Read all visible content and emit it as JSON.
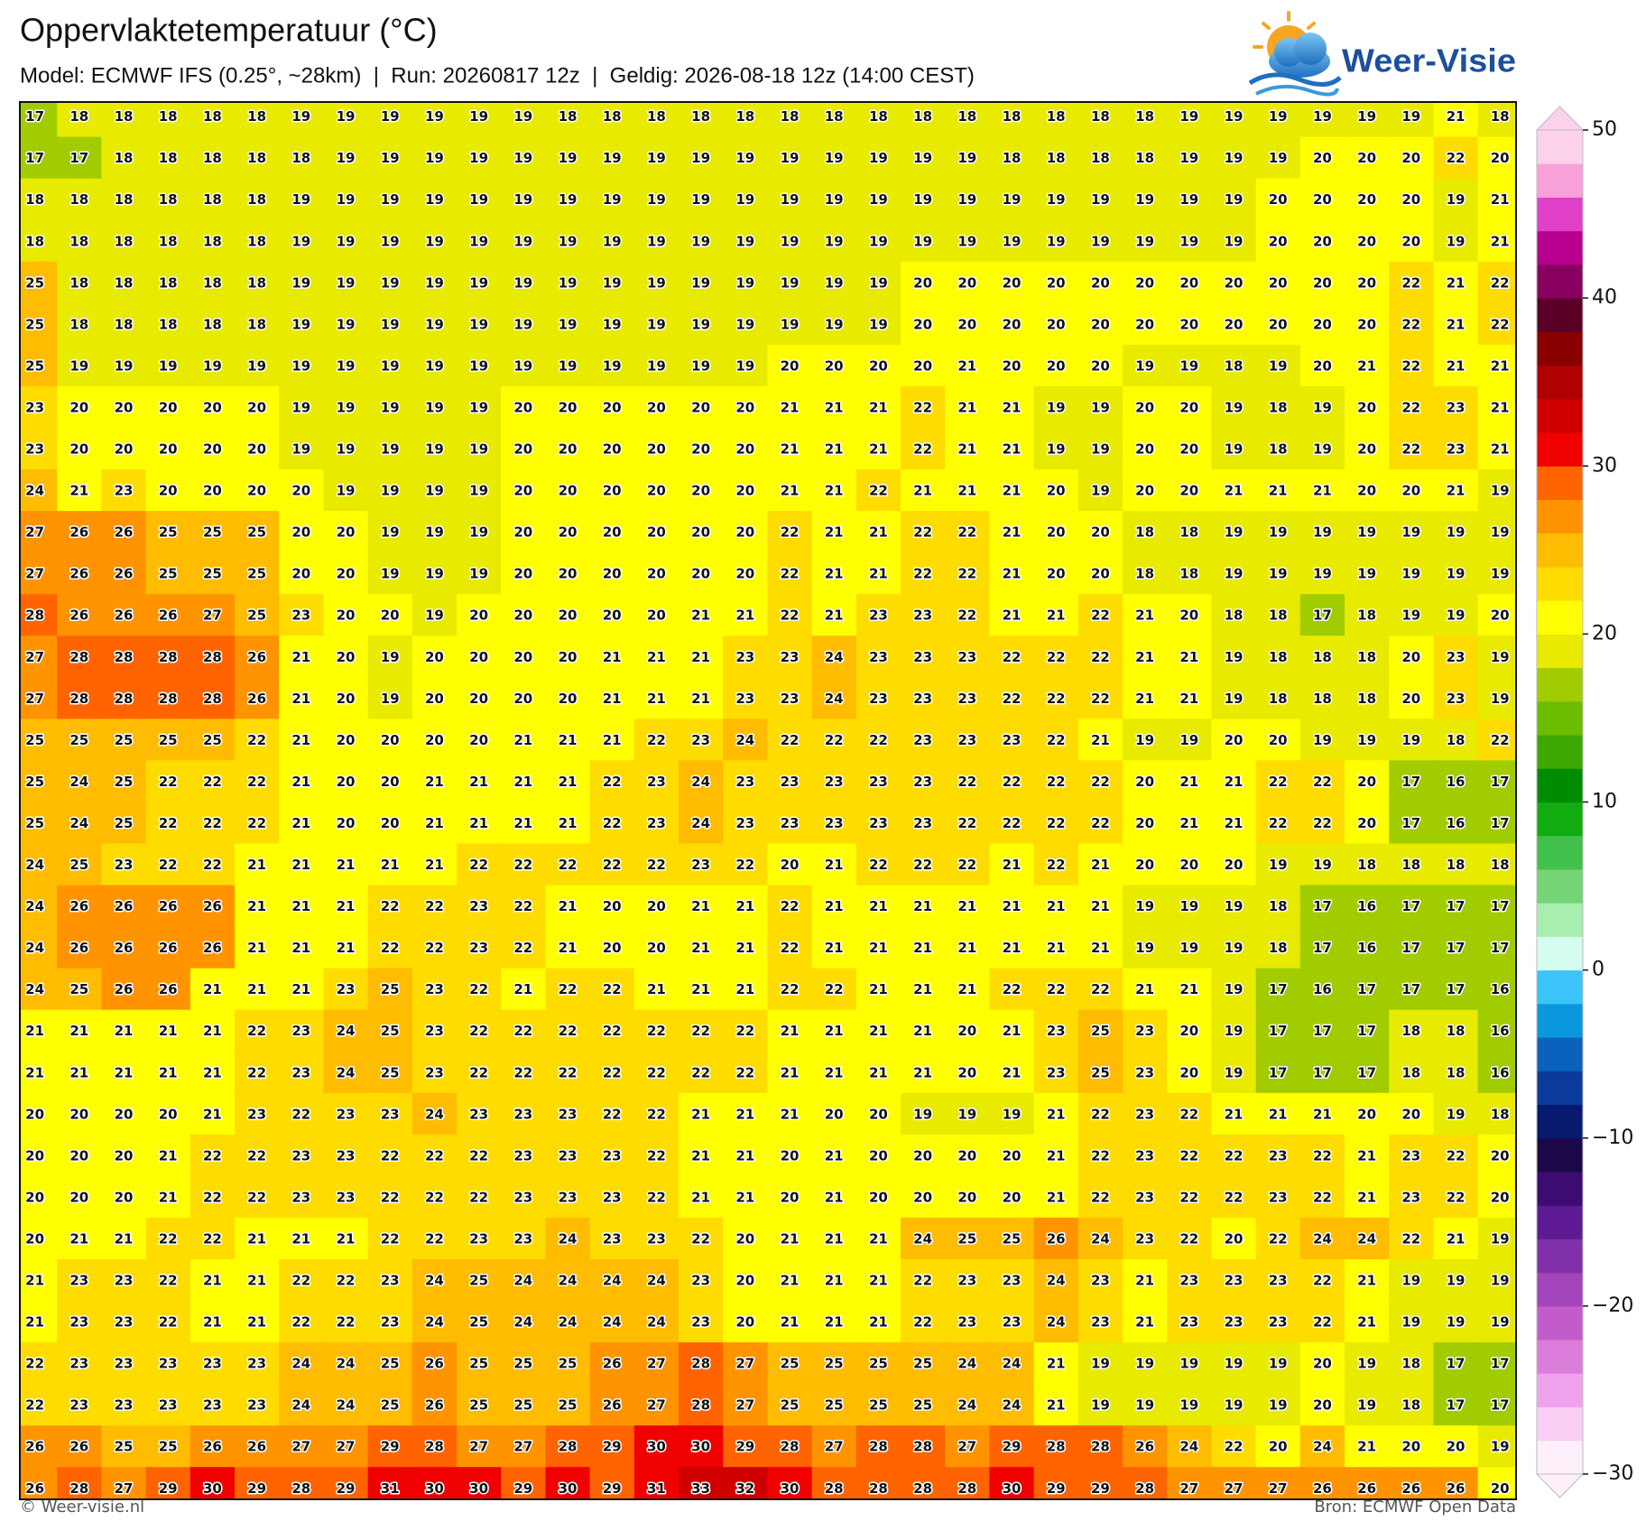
{
  "header": {
    "title": "Oppervlaktetemperatuur (°C)",
    "subtitle": "Model: ECMWF IFS (0.25°, ~28km)  |  Run: 20260817 12z  |  Geldig: 2026-08-18 12z (14:00 CEST)",
    "logo": "Weer-Visie"
  },
  "map": {
    "rows": [
      [
        17,
        18,
        18,
        18,
        18,
        18,
        19,
        19,
        19,
        19,
        19,
        19,
        18,
        18,
        18,
        18,
        18,
        18,
        18,
        18,
        18,
        18,
        18,
        18,
        18,
        18,
        19,
        19,
        19,
        19,
        19,
        19,
        21,
        18
      ],
      [
        17,
        17,
        18,
        18,
        18,
        18,
        18,
        19,
        19,
        19,
        19,
        19,
        19,
        19,
        19,
        19,
        19,
        19,
        19,
        19,
        19,
        19,
        18,
        18,
        18,
        18,
        19,
        19,
        19,
        20,
        20,
        20,
        22,
        20
      ],
      [
        18,
        18,
        18,
        18,
        18,
        18,
        19,
        19,
        19,
        19,
        19,
        19,
        19,
        19,
        19,
        19,
        19,
        19,
        19,
        19,
        19,
        19,
        19,
        19,
        19,
        19,
        19,
        19,
        20,
        20,
        20,
        20,
        19,
        21
      ],
      [
        18,
        18,
        18,
        18,
        18,
        18,
        19,
        19,
        19,
        19,
        19,
        19,
        19,
        19,
        19,
        19,
        19,
        19,
        19,
        19,
        19,
        19,
        19,
        19,
        19,
        19,
        19,
        19,
        20,
        20,
        20,
        20,
        19,
        21
      ],
      [
        25,
        18,
        18,
        18,
        18,
        18,
        19,
        19,
        19,
        19,
        19,
        19,
        19,
        19,
        19,
        19,
        19,
        19,
        19,
        19,
        20,
        20,
        20,
        20,
        20,
        20,
        20,
        20,
        20,
        20,
        20,
        22,
        21,
        22
      ],
      [
        25,
        18,
        18,
        18,
        18,
        18,
        19,
        19,
        19,
        19,
        19,
        19,
        19,
        19,
        19,
        19,
        19,
        19,
        19,
        19,
        20,
        20,
        20,
        20,
        20,
        20,
        20,
        20,
        20,
        20,
        20,
        22,
        21,
        22
      ],
      [
        25,
        19,
        19,
        19,
        19,
        19,
        19,
        19,
        19,
        19,
        19,
        19,
        19,
        19,
        19,
        19,
        19,
        20,
        20,
        20,
        20,
        21,
        20,
        20,
        20,
        19,
        19,
        18,
        19,
        20,
        21,
        22,
        21,
        21
      ],
      [
        23,
        20,
        20,
        20,
        20,
        20,
        19,
        19,
        19,
        19,
        19,
        20,
        20,
        20,
        20,
        20,
        20,
        21,
        21,
        21,
        22,
        21,
        21,
        19,
        19,
        20,
        20,
        19,
        18,
        19,
        20,
        22,
        23,
        21
      ],
      [
        23,
        20,
        20,
        20,
        20,
        20,
        19,
        19,
        19,
        19,
        19,
        20,
        20,
        20,
        20,
        20,
        20,
        21,
        21,
        21,
        22,
        21,
        21,
        19,
        19,
        20,
        20,
        19,
        18,
        19,
        20,
        22,
        23,
        21
      ],
      [
        24,
        21,
        23,
        20,
        20,
        20,
        20,
        19,
        19,
        19,
        19,
        20,
        20,
        20,
        20,
        20,
        20,
        21,
        21,
        22,
        21,
        21,
        21,
        20,
        19,
        20,
        20,
        21,
        21,
        21,
        20,
        20,
        21,
        19
      ],
      [
        27,
        26,
        26,
        25,
        25,
        25,
        20,
        20,
        19,
        19,
        19,
        20,
        20,
        20,
        20,
        20,
        20,
        22,
        21,
        21,
        22,
        22,
        21,
        20,
        20,
        18,
        18,
        19,
        19,
        19,
        19,
        19,
        19,
        19
      ],
      [
        27,
        26,
        26,
        25,
        25,
        25,
        20,
        20,
        19,
        19,
        19,
        20,
        20,
        20,
        20,
        20,
        20,
        22,
        21,
        21,
        22,
        22,
        21,
        20,
        20,
        18,
        18,
        19,
        19,
        19,
        19,
        19,
        19,
        19
      ],
      [
        28,
        26,
        26,
        26,
        27,
        25,
        23,
        20,
        20,
        19,
        20,
        20,
        20,
        20,
        20,
        21,
        21,
        22,
        21,
        23,
        23,
        22,
        21,
        21,
        22,
        21,
        20,
        18,
        18,
        17,
        18,
        19,
        19,
        20
      ],
      [
        27,
        28,
        28,
        28,
        28,
        26,
        21,
        20,
        19,
        20,
        20,
        20,
        20,
        21,
        21,
        21,
        23,
        23,
        24,
        23,
        23,
        23,
        22,
        22,
        22,
        21,
        21,
        19,
        18,
        18,
        18,
        20,
        23,
        19
      ],
      [
        27,
        28,
        28,
        28,
        28,
        26,
        21,
        20,
        19,
        20,
        20,
        20,
        20,
        21,
        21,
        21,
        23,
        23,
        24,
        23,
        23,
        23,
        22,
        22,
        22,
        21,
        21,
        19,
        18,
        18,
        18,
        20,
        23,
        19
      ],
      [
        25,
        25,
        25,
        25,
        25,
        22,
        21,
        20,
        20,
        20,
        20,
        21,
        21,
        21,
        22,
        23,
        24,
        22,
        22,
        22,
        23,
        23,
        23,
        22,
        21,
        19,
        19,
        20,
        20,
        19,
        19,
        19,
        18,
        22
      ],
      [
        25,
        24,
        25,
        22,
        22,
        22,
        21,
        20,
        20,
        21,
        21,
        21,
        21,
        22,
        23,
        24,
        23,
        23,
        23,
        23,
        23,
        22,
        22,
        22,
        22,
        20,
        21,
        21,
        22,
        22,
        20,
        17,
        16,
        17
      ],
      [
        25,
        24,
        25,
        22,
        22,
        22,
        21,
        20,
        20,
        21,
        21,
        21,
        21,
        22,
        23,
        24,
        23,
        23,
        23,
        23,
        23,
        22,
        22,
        22,
        22,
        20,
        21,
        21,
        22,
        22,
        20,
        17,
        16,
        17
      ],
      [
        24,
        25,
        23,
        22,
        22,
        21,
        21,
        21,
        21,
        21,
        22,
        22,
        22,
        22,
        22,
        23,
        22,
        20,
        21,
        22,
        22,
        22,
        21,
        22,
        21,
        20,
        20,
        20,
        19,
        19,
        18,
        18,
        18,
        18
      ],
      [
        24,
        26,
        26,
        26,
        26,
        21,
        21,
        21,
        22,
        22,
        23,
        22,
        21,
        20,
        20,
        21,
        21,
        22,
        21,
        21,
        21,
        21,
        21,
        21,
        21,
        19,
        19,
        19,
        18,
        17,
        16,
        17,
        17,
        17
      ],
      [
        24,
        26,
        26,
        26,
        26,
        21,
        21,
        21,
        22,
        22,
        23,
        22,
        21,
        20,
        20,
        21,
        21,
        22,
        21,
        21,
        21,
        21,
        21,
        21,
        21,
        19,
        19,
        19,
        18,
        17,
        16,
        17,
        17,
        17
      ],
      [
        24,
        25,
        26,
        26,
        21,
        21,
        21,
        23,
        25,
        23,
        22,
        21,
        22,
        22,
        21,
        21,
        21,
        22,
        22,
        21,
        21,
        21,
        22,
        22,
        22,
        21,
        21,
        19,
        17,
        16,
        17,
        17,
        17,
        16
      ],
      [
        21,
        21,
        21,
        21,
        21,
        22,
        23,
        24,
        25,
        23,
        22,
        22,
        22,
        22,
        22,
        22,
        22,
        21,
        21,
        21,
        21,
        20,
        21,
        23,
        25,
        23,
        20,
        19,
        17,
        17,
        17,
        18,
        18,
        16
      ],
      [
        21,
        21,
        21,
        21,
        21,
        22,
        23,
        24,
        25,
        23,
        22,
        22,
        22,
        22,
        22,
        22,
        22,
        21,
        21,
        21,
        21,
        20,
        21,
        23,
        25,
        23,
        20,
        19,
        17,
        17,
        17,
        18,
        18,
        16
      ],
      [
        20,
        20,
        20,
        20,
        21,
        23,
        22,
        23,
        23,
        24,
        23,
        23,
        23,
        22,
        22,
        21,
        21,
        21,
        20,
        20,
        19,
        19,
        19,
        21,
        22,
        23,
        22,
        21,
        21,
        21,
        20,
        20,
        19,
        18
      ],
      [
        20,
        20,
        20,
        21,
        22,
        22,
        23,
        23,
        22,
        22,
        22,
        23,
        23,
        23,
        22,
        21,
        21,
        20,
        21,
        20,
        20,
        20,
        20,
        21,
        22,
        23,
        22,
        22,
        23,
        22,
        21,
        23,
        22,
        20
      ],
      [
        20,
        20,
        20,
        21,
        22,
        22,
        23,
        23,
        22,
        22,
        22,
        23,
        23,
        23,
        22,
        21,
        21,
        20,
        21,
        20,
        20,
        20,
        20,
        21,
        22,
        23,
        22,
        22,
        23,
        22,
        21,
        23,
        22,
        20
      ],
      [
        20,
        21,
        21,
        22,
        22,
        21,
        21,
        21,
        22,
        22,
        23,
        23,
        24,
        23,
        23,
        22,
        20,
        21,
        21,
        21,
        24,
        25,
        25,
        26,
        24,
        23,
        22,
        20,
        22,
        24,
        24,
        22,
        21,
        19
      ],
      [
        21,
        23,
        23,
        22,
        21,
        21,
        22,
        22,
        23,
        24,
        25,
        24,
        24,
        24,
        24,
        23,
        20,
        21,
        21,
        21,
        22,
        23,
        23,
        24,
        23,
        21,
        23,
        23,
        23,
        22,
        21,
        19,
        19,
        19
      ],
      [
        21,
        23,
        23,
        22,
        21,
        21,
        22,
        22,
        23,
        24,
        25,
        24,
        24,
        24,
        24,
        23,
        20,
        21,
        21,
        21,
        22,
        23,
        23,
        24,
        23,
        21,
        23,
        23,
        23,
        22,
        21,
        19,
        19,
        19
      ],
      [
        22,
        23,
        23,
        23,
        23,
        23,
        24,
        24,
        25,
        26,
        25,
        25,
        25,
        26,
        27,
        28,
        27,
        25,
        25,
        25,
        25,
        24,
        24,
        21,
        19,
        19,
        19,
        19,
        19,
        20,
        19,
        18,
        17,
        17
      ],
      [
        22,
        23,
        23,
        23,
        23,
        23,
        24,
        24,
        25,
        26,
        25,
        25,
        25,
        26,
        27,
        28,
        27,
        25,
        25,
        25,
        25,
        24,
        24,
        21,
        19,
        19,
        19,
        19,
        19,
        20,
        19,
        18,
        17,
        17
      ],
      [
        26,
        26,
        25,
        25,
        26,
        26,
        27,
        27,
        29,
        28,
        27,
        27,
        28,
        29,
        30,
        30,
        29,
        28,
        27,
        28,
        28,
        27,
        29,
        28,
        28,
        26,
        24,
        22,
        20,
        24,
        21,
        20,
        20,
        19
      ],
      [
        26,
        28,
        27,
        29,
        30,
        29,
        28,
        29,
        31,
        30,
        30,
        29,
        30,
        29,
        31,
        33,
        32,
        30,
        28,
        28,
        28,
        28,
        30,
        29,
        29,
        28,
        27,
        27,
        27,
        26,
        26,
        26,
        26,
        20
      ]
    ],
    "colorbar": {
      "lim": [
        -30,
        50
      ],
      "ticks": [
        50,
        40,
        30,
        20,
        10,
        0,
        {
          "value": -10,
          "label": "−10"
        },
        {
          "value": -20,
          "label": "−20"
        },
        {
          "value": -30,
          "label": "−30"
        }
      ],
      "colors": [
        "#fef0fb",
        "#f9cdf4",
        "#efa2ec",
        "#dc7cdb",
        "#c25ccb",
        "#a344bb",
        "#8030a8",
        "#5e1a92",
        "#3c0c70",
        "#1c0848",
        "#071a6e",
        "#0a3a9a",
        "#0a62bc",
        "#0a98dc",
        "#3cc4f8",
        "#d4fcef",
        "#a8eeae",
        "#74d476",
        "#42c04c",
        "#10ac10",
        "#008c00",
        "#3ca800",
        "#6cbc00",
        "#a0cc00",
        "#e8ea00",
        "#ffff00",
        "#ffdc00",
        "#ffbc00",
        "#ff9400",
        "#ff6400",
        "#f00000",
        "#d00000",
        "#b00000",
        "#880000",
        "#5a0026",
        "#880060",
        "#b80090",
        "#e040c8",
        "#f8a0d8",
        "#fcd2ea"
      ]
    }
  },
  "footer": {
    "left": "© Weer-visie.nl",
    "right": "Bron: ECMWF Open Data"
  }
}
